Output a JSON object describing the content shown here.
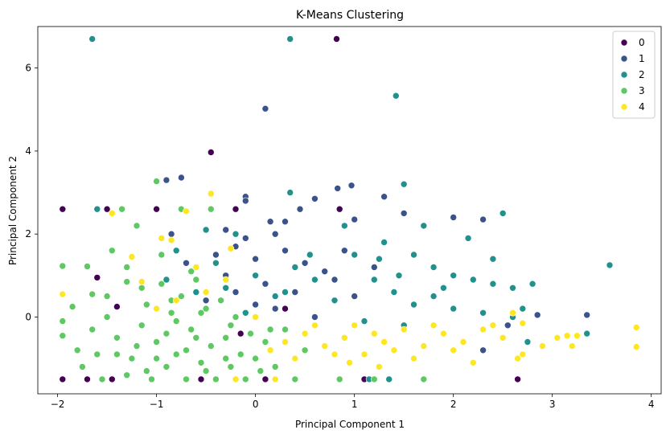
{
  "chart_data": {
    "type": "scatter",
    "title": "K-Means Clustering",
    "xlabel": "Principal Component 1",
    "ylabel": "Principal Component 2",
    "xlim": [
      -2.2,
      4.1
    ],
    "ylim": [
      -1.85,
      7.0
    ],
    "xticks": [
      -2,
      -1,
      0,
      1,
      2,
      3,
      4
    ],
    "yticks": [
      0,
      2,
      4,
      6
    ],
    "grid": false,
    "legend_position": "top-right",
    "series": [
      {
        "name": "0",
        "color": "#440154",
        "points": [
          [
            -1.95,
            2.6
          ],
          [
            -1.95,
            -1.5
          ],
          [
            -1.7,
            -1.5
          ],
          [
            -1.6,
            0.95
          ],
          [
            -1.5,
            2.6
          ],
          [
            -1.45,
            -1.5
          ],
          [
            -1.4,
            0.25
          ],
          [
            -1.0,
            2.6
          ],
          [
            -0.55,
            -1.5
          ],
          [
            -0.45,
            3.97
          ],
          [
            -0.2,
            2.6
          ],
          [
            0.1,
            -1.5
          ],
          [
            0.4,
            -1.5
          ],
          [
            0.82,
            6.7
          ],
          [
            0.85,
            2.6
          ],
          [
            1.1,
            -1.5
          ],
          [
            2.65,
            -1.5
          ],
          [
            -0.15,
            -0.4
          ],
          [
            0.3,
            0.2
          ],
          [
            -0.6,
            1.2
          ]
        ]
      },
      {
        "name": "1",
        "color": "#3b528b",
        "points": [
          [
            0.1,
            5.02
          ],
          [
            -0.75,
            3.36
          ],
          [
            -0.9,
            3.3
          ],
          [
            0.83,
            3.1
          ],
          [
            0.97,
            3.17
          ],
          [
            -0.45,
            2.98
          ],
          [
            -0.1,
            2.9
          ],
          [
            -0.1,
            2.8
          ],
          [
            0.15,
            2.3
          ],
          [
            0.3,
            2.3
          ],
          [
            0.6,
            2.85
          ],
          [
            1.0,
            2.35
          ],
          [
            1.5,
            2.5
          ],
          [
            2.0,
            2.4
          ],
          [
            2.3,
            2.35
          ],
          [
            -0.3,
            2.1
          ],
          [
            0.2,
            2.0
          ],
          [
            -0.85,
            2.0
          ],
          [
            1.3,
            2.9
          ],
          [
            2.85,
            0.05
          ],
          [
            3.35,
            0.05
          ],
          [
            -0.4,
            1.5
          ],
          [
            -0.2,
            1.7
          ],
          [
            0.0,
            1.4
          ],
          [
            0.3,
            1.6
          ],
          [
            0.5,
            1.3
          ],
          [
            0.7,
            1.1
          ],
          [
            -0.6,
            0.9
          ],
          [
            -0.3,
            1.0
          ],
          [
            0.1,
            0.8
          ],
          [
            0.4,
            0.6
          ],
          [
            0.8,
            0.9
          ],
          [
            1.0,
            0.5
          ],
          [
            -0.5,
            0.4
          ],
          [
            0.0,
            0.3
          ],
          [
            0.2,
            0.2
          ],
          [
            0.6,
            0.0
          ],
          [
            -0.7,
            1.3
          ],
          [
            -0.2,
            0.6
          ],
          [
            0.9,
            1.6
          ],
          [
            1.2,
            1.2
          ],
          [
            -0.1,
            1.9
          ],
          [
            0.45,
            2.6
          ],
          [
            2.3,
            -0.8
          ],
          [
            2.55,
            -0.2
          ]
        ]
      },
      {
        "name": "2",
        "color": "#21918c",
        "points": [
          [
            -1.65,
            6.7
          ],
          [
            0.35,
            6.7
          ],
          [
            1.42,
            5.33
          ],
          [
            3.58,
            1.25
          ],
          [
            3.35,
            -0.4
          ],
          [
            1.5,
            3.2
          ],
          [
            0.35,
            3.0
          ],
          [
            -1.6,
            2.6
          ],
          [
            2.5,
            2.5
          ],
          [
            1.3,
            1.8
          ],
          [
            1.6,
            1.5
          ],
          [
            1.8,
            1.2
          ],
          [
            2.0,
            1.0
          ],
          [
            2.2,
            0.9
          ],
          [
            2.4,
            0.8
          ],
          [
            2.6,
            0.7
          ],
          [
            2.8,
            0.8
          ],
          [
            1.0,
            1.5
          ],
          [
            1.2,
            0.9
          ],
          [
            1.4,
            0.6
          ],
          [
            1.6,
            0.3
          ],
          [
            1.8,
            0.5
          ],
          [
            2.0,
            0.2
          ],
          [
            0.8,
            0.4
          ],
          [
            0.6,
            0.9
          ],
          [
            0.4,
            1.2
          ],
          [
            0.2,
            0.5
          ],
          [
            0.0,
            1.0
          ],
          [
            -0.3,
            0.7
          ],
          [
            -0.6,
            0.6
          ],
          [
            -0.9,
            0.9
          ],
          [
            -0.8,
            1.6
          ],
          [
            -0.5,
            2.1
          ],
          [
            -0.2,
            2.0
          ],
          [
            1.5,
            -0.2
          ],
          [
            1.1,
            -0.1
          ],
          [
            2.3,
            0.1
          ],
          [
            2.6,
            0.0
          ],
          [
            -0.1,
            0.1
          ],
          [
            0.9,
            2.2
          ],
          [
            1.7,
            2.2
          ],
          [
            2.15,
            1.9
          ],
          [
            1.25,
            1.4
          ],
          [
            0.55,
            1.5
          ],
          [
            2.4,
            1.4
          ],
          [
            2.7,
            0.2
          ],
          [
            0.3,
            0.6
          ],
          [
            1.9,
            0.7
          ],
          [
            1.45,
            1.0
          ],
          [
            -0.4,
            1.3
          ],
          [
            1.35,
            -1.5
          ],
          [
            1.15,
            -1.5
          ],
          [
            2.75,
            -0.6
          ]
        ]
      },
      {
        "name": "3",
        "color": "#5ec962",
        "points": [
          [
            -1.95,
            1.23
          ],
          [
            -1.95,
            -0.1
          ],
          [
            -1.95,
            -0.45
          ],
          [
            -1.85,
            0.25
          ],
          [
            -1.8,
            -0.8
          ],
          [
            -1.75,
            -1.2
          ],
          [
            -1.7,
            1.22
          ],
          [
            -1.65,
            0.55
          ],
          [
            -1.6,
            -0.9
          ],
          [
            -1.55,
            -1.5
          ],
          [
            -1.5,
            0.0
          ],
          [
            -1.45,
            1.6
          ],
          [
            -1.4,
            -0.5
          ],
          [
            -1.35,
            2.6
          ],
          [
            -1.3,
            1.2
          ],
          [
            -1.25,
            -1.0
          ],
          [
            -1.2,
            2.2
          ],
          [
            -1.15,
            -0.2
          ],
          [
            -1.1,
            0.3
          ],
          [
            -1.05,
            -1.5
          ],
          [
            -1.0,
            3.27
          ],
          [
            -1.0,
            -0.6
          ],
          [
            -0.95,
            0.8
          ],
          [
            -0.9,
            -1.2
          ],
          [
            -0.85,
            0.1
          ],
          [
            -0.8,
            -0.9
          ],
          [
            -0.75,
            0.5
          ],
          [
            -0.7,
            -1.5
          ],
          [
            -0.65,
            -0.3
          ],
          [
            -0.6,
            0.9
          ],
          [
            -0.55,
            -1.1
          ],
          [
            -0.5,
            0.2
          ],
          [
            -0.45,
            -0.7
          ],
          [
            -0.4,
            -1.5
          ],
          [
            -0.35,
            0.4
          ],
          [
            -0.3,
            -0.5
          ],
          [
            -0.25,
            -1.2
          ],
          [
            -0.2,
            0.0
          ],
          [
            -0.15,
            -0.9
          ],
          [
            -0.1,
            -1.5
          ],
          [
            -0.05,
            -0.4
          ],
          [
            0.0,
            -1.0
          ],
          [
            0.1,
            -0.6
          ],
          [
            0.2,
            -1.2
          ],
          [
            0.3,
            -0.3
          ],
          [
            0.4,
            -1.5
          ],
          [
            0.5,
            -0.8
          ],
          [
            0.6,
            -0.2
          ],
          [
            -1.2,
            -0.7
          ],
          [
            -1.1,
            -1.3
          ],
          [
            -0.9,
            -0.4
          ],
          [
            -0.8,
            -0.1
          ],
          [
            -0.7,
            -0.8
          ],
          [
            -0.6,
            -0.5
          ],
          [
            -0.5,
            -1.3
          ],
          [
            -1.3,
            -1.4
          ],
          [
            -1.4,
            -0.9
          ],
          [
            -1.0,
            -1.0
          ],
          [
            -0.3,
            -1.0
          ],
          [
            1.2,
            -1.5
          ],
          [
            1.7,
            -1.5
          ],
          [
            0.85,
            -1.5
          ],
          [
            -1.5,
            0.5
          ],
          [
            -1.65,
            -0.3
          ],
          [
            -0.95,
            1.5
          ],
          [
            -0.65,
            1.1
          ],
          [
            -0.25,
            -0.2
          ],
          [
            0.15,
            -0.3
          ],
          [
            -1.15,
            0.7
          ],
          [
            -0.85,
            0.4
          ],
          [
            -0.45,
            2.6
          ],
          [
            -0.75,
            2.6
          ],
          [
            -1.3,
            0.85
          ],
          [
            -0.55,
            0.1
          ],
          [
            0.05,
            -1.3
          ]
        ]
      },
      {
        "name": "4",
        "color": "#fde725",
        "points": [
          [
            -1.95,
            0.55
          ],
          [
            -1.45,
            2.5
          ],
          [
            -1.25,
            1.45
          ],
          [
            -1.15,
            0.85
          ],
          [
            -0.95,
            1.9
          ],
          [
            -0.85,
            1.85
          ],
          [
            -0.7,
            2.55
          ],
          [
            -0.45,
            2.97
          ],
          [
            -0.6,
            1.2
          ],
          [
            -0.2,
            -1.5
          ],
          [
            0.15,
            -0.8
          ],
          [
            0.3,
            -0.6
          ],
          [
            0.5,
            -0.4
          ],
          [
            0.7,
            -0.7
          ],
          [
            0.9,
            -0.5
          ],
          [
            1.1,
            -0.9
          ],
          [
            1.3,
            -0.6
          ],
          [
            1.5,
            -0.3
          ],
          [
            1.7,
            -0.7
          ],
          [
            1.9,
            -0.4
          ],
          [
            2.1,
            -0.6
          ],
          [
            2.3,
            -0.3
          ],
          [
            2.5,
            -0.5
          ],
          [
            2.7,
            -0.9
          ],
          [
            2.9,
            -0.7
          ],
          [
            3.05,
            -0.5
          ],
          [
            3.15,
            -0.45
          ],
          [
            3.25,
            -0.45
          ],
          [
            3.2,
            -0.7
          ],
          [
            3.85,
            -0.25
          ],
          [
            3.85,
            -0.72
          ],
          [
            2.65,
            -1.0
          ],
          [
            2.7,
            -0.15
          ],
          [
            2.4,
            -0.2
          ],
          [
            2.0,
            -0.8
          ],
          [
            1.6,
            -1.0
          ],
          [
            1.2,
            -0.4
          ],
          [
            0.8,
            -0.9
          ],
          [
            0.4,
            -1.0
          ],
          [
            0.6,
            -0.2
          ],
          [
            1.0,
            -0.2
          ],
          [
            1.4,
            -0.8
          ],
          [
            1.8,
            -0.2
          ],
          [
            2.2,
            -1.1
          ],
          [
            -0.5,
            0.6
          ],
          [
            -0.3,
            0.9
          ],
          [
            -0.8,
            0.4
          ],
          [
            -1.0,
            0.2
          ],
          [
            0.2,
            -1.5
          ],
          [
            2.6,
            0.1
          ],
          [
            -0.25,
            1.65
          ],
          [
            0.0,
            0.0
          ],
          [
            0.95,
            -1.1
          ],
          [
            1.25,
            -1.2
          ]
        ]
      }
    ]
  }
}
